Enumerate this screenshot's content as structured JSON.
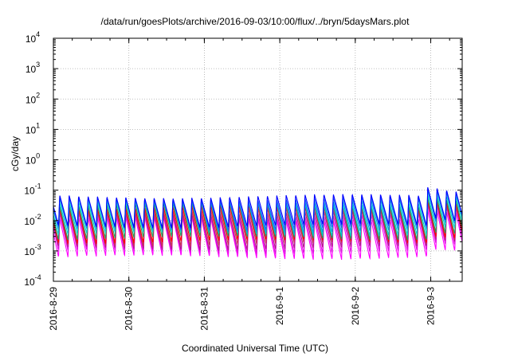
{
  "chart_data": {
    "type": "line",
    "title": "/data/run/goesPlots/archive/2016-09-03/10:00/flux/../bryn/5daysMars.plot",
    "xlabel": "Coordinated Universal Time (UTC)",
    "ylabel": "cGy/day",
    "y_scale": "log",
    "ylim": [
      0.0001,
      10000
    ],
    "y_ticks": [
      {
        "base": "10",
        "exp": "-4"
      },
      {
        "base": "10",
        "exp": "-3"
      },
      {
        "base": "10",
        "exp": "-2"
      },
      {
        "base": "10",
        "exp": "-1"
      },
      {
        "base": "10",
        "exp": "0"
      },
      {
        "base": "10",
        "exp": "1"
      },
      {
        "base": "10",
        "exp": "2"
      },
      {
        "base": "10",
        "exp": "3"
      },
      {
        "base": "10",
        "exp": "4"
      }
    ],
    "xlim": [
      "2016-08-29T00:00",
      "2016-09-03T10:00"
    ],
    "x_ticks": [
      "2016-8-29",
      "2016-8-30",
      "2016-8-31",
      "2016-9-1",
      "2016-9-2",
      "2016-9-3"
    ],
    "grid": true,
    "cycle_hours": 3,
    "series": [
      {
        "color": "#ff00ff",
        "peak": 0.012,
        "trough": 0.0006
      },
      {
        "color": "#e010e0",
        "peak": 0.016,
        "trough": 0.0009
      },
      {
        "color": "#b21a8c",
        "peak": 0.02,
        "trough": 0.0012
      },
      {
        "color": "#cc3355",
        "peak": 0.025,
        "trough": 0.0016
      },
      {
        "color": "#ff0000",
        "peak": 0.03,
        "trough": 0.002
      },
      {
        "color": "#20a060",
        "peak": 0.035,
        "trough": 0.0026
      },
      {
        "color": "#00cccc",
        "peak": 0.04,
        "trough": 0.0035
      },
      {
        "color": "#00a0e0",
        "peak": 0.048,
        "trough": 0.0045
      },
      {
        "color": "#2060ff",
        "peak": 0.055,
        "trough": 0.0055
      },
      {
        "color": "#0000ff",
        "peak": 0.065,
        "trough": 0.0065
      }
    ]
  }
}
